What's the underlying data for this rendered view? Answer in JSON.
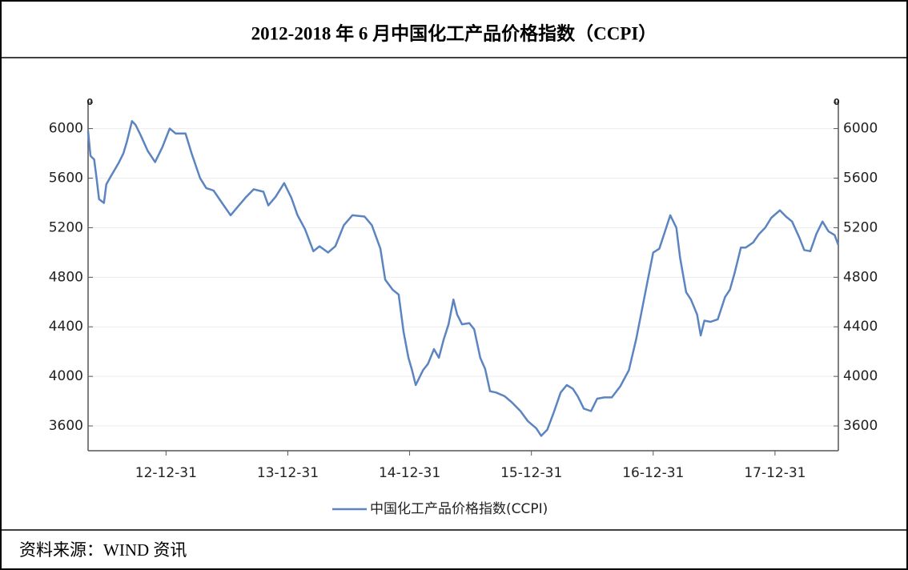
{
  "chart_data": {
    "type": "line",
    "title": "2012-2018 年 6 月中国化工产品价格指数（CCPI）",
    "x": [
      2012.36,
      2012.38,
      2012.41,
      2012.43,
      2012.45,
      2012.49,
      2012.51,
      2012.55,
      2012.61,
      2012.65,
      2012.68,
      2012.72,
      2012.75,
      2012.79,
      2012.85,
      2012.91,
      2012.97,
      2013.03,
      2013.08,
      2013.16,
      2013.21,
      2013.28,
      2013.33,
      2013.39,
      2013.46,
      2013.53,
      2013.59,
      2013.66,
      2013.72,
      2013.8,
      2013.84,
      2013.9,
      2013.97,
      2014.03,
      2014.08,
      2014.14,
      2014.21,
      2014.26,
      2014.33,
      2014.39,
      2014.46,
      2014.53,
      2014.63,
      2014.69,
      2014.76,
      2014.8,
      2014.86,
      2014.91,
      2014.95,
      2014.99,
      2015.02,
      2015.05,
      2015.11,
      2015.15,
      2015.2,
      2015.24,
      2015.28,
      2015.32,
      2015.36,
      2015.39,
      2015.43,
      2015.49,
      2015.53,
      2015.58,
      2015.62,
      2015.66,
      2015.71,
      2015.78,
      2015.84,
      2015.91,
      2015.97,
      2016.04,
      2016.08,
      2016.13,
      2016.18,
      2016.24,
      2016.29,
      2016.34,
      2016.38,
      2016.43,
      2016.49,
      2016.54,
      2016.6,
      2016.66,
      2016.73,
      2016.8,
      2016.86,
      2016.91,
      2016.96,
      2017.0,
      2017.05,
      2017.09,
      2017.14,
      2017.19,
      2017.22,
      2017.27,
      2017.31,
      2017.36,
      2017.39,
      2017.42,
      2017.47,
      2017.53,
      2017.59,
      2017.63,
      2017.67,
      2017.72,
      2017.76,
      2017.82,
      2017.87,
      2017.92,
      2017.97,
      2018.04,
      2018.09,
      2018.14,
      2018.2,
      2018.24,
      2018.29,
      2018.34,
      2018.39,
      2018.44,
      2018.49,
      2018.52
    ],
    "series": [
      {
        "name": "中国化工产品价格指数(CCPI)",
        "color": "#5b84c0",
        "values": [
          5980,
          5780,
          5750,
          5600,
          5430,
          5400,
          5550,
          5620,
          5720,
          5800,
          5900,
          6060,
          6030,
          5950,
          5820,
          5730,
          5850,
          6000,
          5960,
          5960,
          5800,
          5600,
          5520,
          5500,
          5400,
          5300,
          5370,
          5450,
          5510,
          5490,
          5380,
          5450,
          5560,
          5440,
          5300,
          5190,
          5010,
          5050,
          5000,
          5050,
          5220,
          5300,
          5290,
          5220,
          5030,
          4780,
          4700,
          4660,
          4360,
          4150,
          4050,
          3930,
          4050,
          4100,
          4220,
          4150,
          4300,
          4420,
          4620,
          4500,
          4420,
          4430,
          4380,
          4150,
          4060,
          3880,
          3870,
          3840,
          3790,
          3720,
          3640,
          3580,
          3520,
          3570,
          3700,
          3870,
          3930,
          3900,
          3840,
          3740,
          3720,
          3820,
          3830,
          3830,
          3920,
          4050,
          4300,
          4550,
          4800,
          5000,
          5030,
          5150,
          5300,
          5200,
          4960,
          4680,
          4620,
          4500,
          4330,
          4450,
          4440,
          4460,
          4640,
          4700,
          4840,
          5040,
          5040,
          5080,
          5150,
          5200,
          5280,
          5340,
          5290,
          5250,
          5120,
          5020,
          5010,
          5150,
          5250,
          5170,
          5140,
          5060
        ]
      }
    ],
    "xlim": [
      2012.36,
      2018.52
    ],
    "xticks": [
      {
        "value": 2013,
        "label": "12-12-31"
      },
      {
        "value": 2014,
        "label": "13-12-31"
      },
      {
        "value": 2015,
        "label": "14-12-31"
      },
      {
        "value": 2016,
        "label": "15-12-31"
      },
      {
        "value": 2017,
        "label": "16-12-31"
      },
      {
        "value": 2018,
        "label": "17-12-31"
      }
    ],
    "ylim": [
      3400,
      6230
    ],
    "yticks": [
      3600,
      4000,
      4400,
      4800,
      5200,
      5600,
      6000,
      {
        "value": 6210,
        "label": "0"
      }
    ],
    "legend": "bottom"
  },
  "source": "资料来源：WIND 资讯"
}
